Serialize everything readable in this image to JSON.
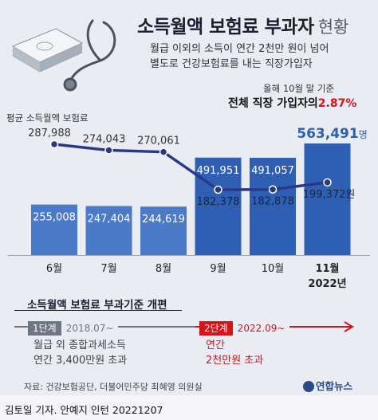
{
  "title": {
    "main": "소득월액 보험료 부과자",
    "light": "현황"
  },
  "subtitle": [
    "월급 이외의 소득이 연간 2천만 원이 넘어",
    "별도로 건강보험료를 내는 직장가입자"
  ],
  "callout": {
    "small": "올해 10월 말 기준",
    "big_prefix": "전체 직장 가입자의",
    "big_value": "2.87%"
  },
  "chart_data": {
    "type": "bar",
    "categories": [
      "6월",
      "7월",
      "8월",
      "9월",
      "10월",
      "11월"
    ],
    "x_sublabel": "2022년",
    "series": [
      {
        "name": "",
        "values": [
          255008,
          247404,
          244619,
          491951,
          491057,
          563491
        ],
        "last_unit": "명"
      },
      {
        "name": "평균 소득월액 보험료",
        "values": [
          287988,
          274043,
          270061,
          182378,
          182878,
          199372
        ],
        "last_unit": "원"
      }
    ],
    "bar_labels": [
      "255,008",
      "247,404",
      "244,619",
      "491,951",
      "491,057",
      "563,491"
    ],
    "line_labels": [
      "287,988",
      "274,043",
      "270,061",
      "182,378",
      "182,878",
      "199,372"
    ]
  },
  "colors": {
    "bar_light": "#4a7ac8",
    "bar_dark": "#2e5fb3",
    "line": "#283a86",
    "accent_red": "#d6121b",
    "stage1": "#6d7584"
  },
  "reform": {
    "title": "소득월액 보험료 부과기준 개편",
    "stage1": {
      "label": "1단계",
      "date": "2018.07~",
      "desc": [
        "월급 외 종합과세소득",
        "연간 3,400만원 초과"
      ]
    },
    "stage2": {
      "label": "2단계",
      "date": "2022.09~",
      "desc": [
        "연간",
        "2천만원 초과"
      ]
    }
  },
  "source": "자료: 건강보험공단, 더불어민주당 최혜영 의원실",
  "logo": "연합뉴스",
  "credit": "김토일 기자. 안예지 인턴  20221207"
}
